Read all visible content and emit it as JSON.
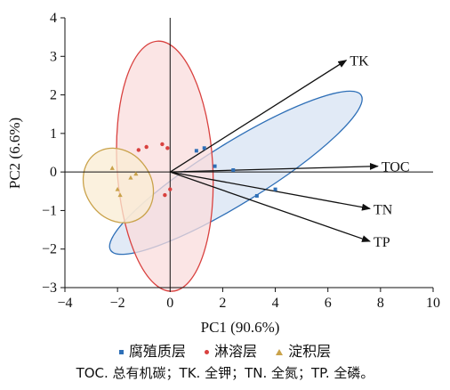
{
  "chart_data": {
    "type": "scatter",
    "xlabel": "PC1 (90.6%)",
    "ylabel": "PC2 (6.6%)",
    "xlim": [
      -4,
      10
    ],
    "ylim": [
      -3,
      4
    ],
    "x_ticks": [
      "−4",
      "−2",
      "0",
      "2",
      "4",
      "6",
      "8",
      "10"
    ],
    "y_ticks": [
      "−3",
      "−2",
      "−1",
      "0",
      "1",
      "2",
      "3",
      "4"
    ],
    "series": [
      {
        "name": "腐殖质层",
        "color": "#2e6fb7",
        "marker": "square",
        "points": [
          [
            1.0,
            0.55
          ],
          [
            1.3,
            0.62
          ],
          [
            1.7,
            0.15
          ],
          [
            2.4,
            0.05
          ],
          [
            3.3,
            -0.62
          ],
          [
            4.0,
            -0.45
          ]
        ],
        "ellipse": {
          "cx": 2.5,
          "cy": -0.02,
          "rx": 5.6,
          "ry": 0.78,
          "angle_deg": -31.7,
          "fill": "#d7e3f3",
          "stroke": "#2e6fb7"
        }
      },
      {
        "name": "淋溶层",
        "color": "#d9413f",
        "marker": "circle",
        "points": [
          [
            -1.2,
            0.57
          ],
          [
            -0.9,
            0.65
          ],
          [
            -0.3,
            0.72
          ],
          [
            -0.1,
            0.62
          ],
          [
            0.0,
            -0.45
          ],
          [
            -0.2,
            -0.6
          ]
        ],
        "ellipse": {
          "cx": -0.2,
          "cy": 0.15,
          "rx": 1.82,
          "ry": 3.25,
          "angle_deg": -3.4,
          "fill": "#f9dcdc",
          "stroke": "#d9413f"
        }
      },
      {
        "name": "淀积层",
        "color": "#c9a24a",
        "marker": "triangle",
        "points": [
          [
            -2.2,
            0.1
          ],
          [
            -2.0,
            -0.45
          ],
          [
            -1.9,
            -0.6
          ],
          [
            -1.5,
            -0.15
          ],
          [
            -1.3,
            -0.05
          ]
        ],
        "ellipse": {
          "cx": -1.97,
          "cy": -0.35,
          "rx": 1.25,
          "ry": 1.02,
          "angle_deg": -35,
          "fill": "#f9ecd3",
          "stroke": "#c9a24a"
        }
      }
    ],
    "vectors": [
      {
        "name": "TK",
        "x": 6.7,
        "y": 2.9
      },
      {
        "name": "TOC",
        "x": 7.9,
        "y": 0.15
      },
      {
        "name": "TN",
        "x": 7.6,
        "y": -0.95
      },
      {
        "name": "TP",
        "x": 7.6,
        "y": -1.8
      }
    ],
    "legend": {
      "position": "bottom"
    },
    "grid": false
  },
  "caption": "TOC. 总有机碳；TK. 全钾；TN. 全氮；TP. 全磷。"
}
